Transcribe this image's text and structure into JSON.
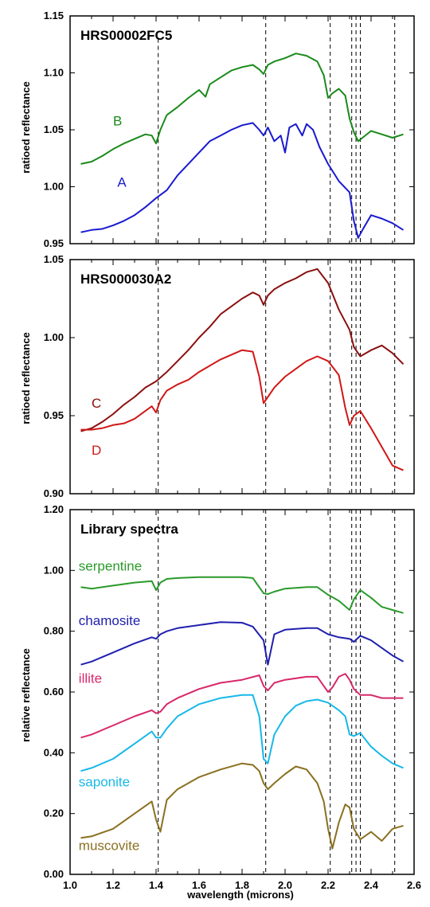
{
  "chart_data": [
    {
      "type": "line",
      "title": "HRS00002FC5",
      "ylabel": "ratioed reflectance",
      "xlim": [
        1.0,
        2.6
      ],
      "ylim": [
        0.95,
        1.15
      ],
      "yticks": [
        "0.95",
        "1.00",
        "1.05",
        "1.10",
        "1.15"
      ],
      "series": [
        {
          "name": "B",
          "color": "#1a8a1a",
          "x": [
            1.05,
            1.1,
            1.15,
            1.2,
            1.25,
            1.3,
            1.35,
            1.38,
            1.4,
            1.42,
            1.45,
            1.5,
            1.55,
            1.6,
            1.63,
            1.65,
            1.7,
            1.75,
            1.8,
            1.85,
            1.88,
            1.9,
            1.92,
            1.95,
            2.0,
            2.05,
            2.1,
            2.15,
            2.18,
            2.2,
            2.22,
            2.25,
            2.28,
            2.3,
            2.32,
            2.34,
            2.36,
            2.4,
            2.45,
            2.5,
            2.55
          ],
          "y": [
            1.02,
            1.022,
            1.027,
            1.033,
            1.038,
            1.042,
            1.046,
            1.045,
            1.038,
            1.05,
            1.063,
            1.07,
            1.078,
            1.085,
            1.079,
            1.09,
            1.096,
            1.102,
            1.105,
            1.107,
            1.103,
            1.099,
            1.107,
            1.11,
            1.113,
            1.117,
            1.115,
            1.11,
            1.098,
            1.078,
            1.082,
            1.086,
            1.08,
            1.06,
            1.048,
            1.04,
            1.043,
            1.049,
            1.046,
            1.043,
            1.046
          ]
        },
        {
          "name": "A",
          "color": "#1a1ad0",
          "x": [
            1.05,
            1.1,
            1.15,
            1.2,
            1.25,
            1.3,
            1.35,
            1.4,
            1.45,
            1.5,
            1.55,
            1.6,
            1.65,
            1.7,
            1.75,
            1.8,
            1.85,
            1.88,
            1.9,
            1.92,
            1.95,
            1.98,
            2.0,
            2.02,
            2.05,
            2.08,
            2.1,
            2.13,
            2.16,
            2.2,
            2.25,
            2.3,
            2.32,
            2.34,
            2.36,
            2.4,
            2.45,
            2.5,
            2.55
          ],
          "y": [
            0.96,
            0.962,
            0.963,
            0.966,
            0.97,
            0.975,
            0.982,
            0.99,
            0.997,
            1.01,
            1.02,
            1.03,
            1.04,
            1.045,
            1.05,
            1.054,
            1.056,
            1.05,
            1.045,
            1.052,
            1.04,
            1.045,
            1.03,
            1.052,
            1.055,
            1.045,
            1.055,
            1.05,
            1.035,
            1.02,
            1.005,
            0.995,
            0.97,
            0.955,
            0.962,
            0.975,
            0.972,
            0.968,
            0.962
          ]
        }
      ],
      "annotations": [
        {
          "text": "B",
          "x": 1.2,
          "y": 1.054
        },
        {
          "text": "A",
          "x": 1.22,
          "y": 1.0
        }
      ]
    },
    {
      "type": "line",
      "title": "HRS000030A2",
      "ylabel": "ratioed reflectance",
      "xlim": [
        1.0,
        2.6
      ],
      "ylim": [
        0.9,
        1.05
      ],
      "yticks": [
        "0.90",
        "0.95",
        "1.00",
        "1.05"
      ],
      "series": [
        {
          "name": "C",
          "color": "#8b1010",
          "x": [
            1.05,
            1.1,
            1.15,
            1.2,
            1.25,
            1.3,
            1.35,
            1.4,
            1.45,
            1.5,
            1.55,
            1.6,
            1.65,
            1.7,
            1.75,
            1.8,
            1.85,
            1.88,
            1.9,
            1.92,
            1.95,
            2.0,
            2.05,
            2.1,
            2.15,
            2.2,
            2.25,
            2.3,
            2.32,
            2.35,
            2.4,
            2.45,
            2.5,
            2.55
          ],
          "y": [
            0.94,
            0.942,
            0.946,
            0.951,
            0.957,
            0.962,
            0.968,
            0.972,
            0.978,
            0.985,
            0.992,
            1.0,
            1.007,
            1.015,
            1.02,
            1.025,
            1.029,
            1.027,
            1.021,
            1.027,
            1.031,
            1.035,
            1.038,
            1.042,
            1.044,
            1.035,
            1.018,
            1.005,
            0.994,
            0.988,
            0.992,
            0.995,
            0.99,
            0.983
          ]
        },
        {
          "name": "D",
          "color": "#d01818",
          "x": [
            1.05,
            1.1,
            1.15,
            1.2,
            1.25,
            1.3,
            1.35,
            1.38,
            1.4,
            1.42,
            1.45,
            1.5,
            1.55,
            1.6,
            1.65,
            1.7,
            1.75,
            1.8,
            1.85,
            1.88,
            1.9,
            1.92,
            1.95,
            2.0,
            2.05,
            2.1,
            2.15,
            2.2,
            2.25,
            2.28,
            2.3,
            2.32,
            2.35,
            2.4,
            2.45,
            2.5,
            2.55
          ],
          "y": [
            0.941,
            0.941,
            0.942,
            0.944,
            0.945,
            0.948,
            0.953,
            0.956,
            0.952,
            0.96,
            0.966,
            0.97,
            0.973,
            0.978,
            0.982,
            0.986,
            0.989,
            0.992,
            0.991,
            0.975,
            0.958,
            0.962,
            0.968,
            0.975,
            0.98,
            0.985,
            0.988,
            0.985,
            0.976,
            0.955,
            0.944,
            0.95,
            0.953,
            0.942,
            0.93,
            0.918,
            0.915
          ]
        }
      ],
      "annotations": [
        {
          "text": "C",
          "x": 1.1,
          "y": 0.955
        },
        {
          "text": "D",
          "x": 1.1,
          "y": 0.925
        }
      ]
    },
    {
      "type": "line",
      "title": "Library spectra",
      "ylabel": "relative reflectance",
      "xlabel": "wavelength (microns)",
      "xlim": [
        1.0,
        2.6
      ],
      "ylim": [
        0.0,
        1.2
      ],
      "xticks": [
        "1.0",
        "1.2",
        "1.4",
        "1.6",
        "1.8",
        "2.0",
        "2.2",
        "2.4",
        "2.6"
      ],
      "yticks": [
        "0.00",
        "0.20",
        "0.40",
        "0.60",
        "0.80",
        "1.00",
        "1.20"
      ],
      "series": [
        {
          "name": "serpentine",
          "color": "#2a9a2a",
          "x": [
            1.05,
            1.1,
            1.2,
            1.3,
            1.38,
            1.4,
            1.42,
            1.45,
            1.5,
            1.6,
            1.7,
            1.8,
            1.85,
            1.9,
            1.92,
            1.95,
            2.0,
            2.1,
            2.15,
            2.2,
            2.25,
            2.3,
            2.32,
            2.35,
            2.4,
            2.45,
            2.5,
            2.55
          ],
          "y": [
            0.945,
            0.94,
            0.95,
            0.96,
            0.965,
            0.935,
            0.96,
            0.972,
            0.975,
            0.978,
            0.978,
            0.978,
            0.975,
            0.925,
            0.922,
            0.93,
            0.94,
            0.945,
            0.945,
            0.92,
            0.9,
            0.87,
            0.905,
            0.935,
            0.91,
            0.88,
            0.87,
            0.86
          ]
        },
        {
          "name": "chamosite",
          "color": "#2020b0",
          "x": [
            1.05,
            1.1,
            1.2,
            1.3,
            1.38,
            1.4,
            1.42,
            1.45,
            1.5,
            1.6,
            1.7,
            1.8,
            1.85,
            1.9,
            1.92,
            1.95,
            2.0,
            2.1,
            2.15,
            2.2,
            2.25,
            2.3,
            2.32,
            2.35,
            2.4,
            2.45,
            2.5,
            2.55
          ],
          "y": [
            0.69,
            0.7,
            0.73,
            0.76,
            0.78,
            0.775,
            0.79,
            0.8,
            0.81,
            0.82,
            0.83,
            0.828,
            0.815,
            0.77,
            0.69,
            0.79,
            0.805,
            0.81,
            0.81,
            0.79,
            0.78,
            0.775,
            0.765,
            0.785,
            0.77,
            0.745,
            0.72,
            0.7
          ]
        },
        {
          "name": "illite",
          "color": "#d8286a",
          "x": [
            1.05,
            1.1,
            1.2,
            1.3,
            1.38,
            1.4,
            1.42,
            1.45,
            1.5,
            1.6,
            1.7,
            1.8,
            1.88,
            1.9,
            1.92,
            1.95,
            2.0,
            2.1,
            2.15,
            2.18,
            2.2,
            2.22,
            2.25,
            2.28,
            2.3,
            2.32,
            2.35,
            2.4,
            2.45,
            2.5,
            2.55
          ],
          "y": [
            0.45,
            0.46,
            0.49,
            0.52,
            0.54,
            0.53,
            0.535,
            0.56,
            0.58,
            0.61,
            0.63,
            0.64,
            0.655,
            0.62,
            0.605,
            0.63,
            0.64,
            0.65,
            0.65,
            0.62,
            0.6,
            0.615,
            0.65,
            0.66,
            0.64,
            0.61,
            0.59,
            0.59,
            0.58,
            0.58,
            0.58
          ]
        },
        {
          "name": "saponite",
          "color": "#18b8e8",
          "x": [
            1.05,
            1.1,
            1.2,
            1.3,
            1.38,
            1.4,
            1.42,
            1.45,
            1.5,
            1.6,
            1.7,
            1.8,
            1.85,
            1.88,
            1.9,
            1.92,
            1.95,
            2.0,
            2.05,
            2.1,
            2.15,
            2.2,
            2.25,
            2.28,
            2.3,
            2.32,
            2.35,
            2.4,
            2.45,
            2.5,
            2.55
          ],
          "y": [
            0.34,
            0.35,
            0.38,
            0.43,
            0.47,
            0.45,
            0.45,
            0.48,
            0.52,
            0.56,
            0.58,
            0.59,
            0.59,
            0.52,
            0.38,
            0.365,
            0.46,
            0.52,
            0.555,
            0.57,
            0.575,
            0.565,
            0.54,
            0.52,
            0.46,
            0.455,
            0.465,
            0.42,
            0.39,
            0.365,
            0.35
          ]
        },
        {
          "name": "muscovite",
          "color": "#8a7020",
          "x": [
            1.05,
            1.1,
            1.2,
            1.3,
            1.38,
            1.4,
            1.42,
            1.45,
            1.5,
            1.6,
            1.7,
            1.8,
            1.85,
            1.88,
            1.9,
            1.92,
            1.95,
            2.0,
            2.05,
            2.1,
            2.15,
            2.18,
            2.2,
            2.22,
            2.25,
            2.28,
            2.3,
            2.32,
            2.35,
            2.4,
            2.45,
            2.5,
            2.55
          ],
          "y": [
            0.12,
            0.125,
            0.15,
            0.2,
            0.24,
            0.18,
            0.14,
            0.245,
            0.28,
            0.32,
            0.345,
            0.365,
            0.36,
            0.34,
            0.3,
            0.28,
            0.3,
            0.33,
            0.355,
            0.345,
            0.3,
            0.24,
            0.15,
            0.085,
            0.17,
            0.23,
            0.22,
            0.15,
            0.115,
            0.14,
            0.11,
            0.15,
            0.16
          ]
        }
      ],
      "annotations": [
        {
          "text": "serpentine",
          "x": 1.04,
          "y": 1.0
        },
        {
          "text": "chamosite",
          "x": 1.04,
          "y": 0.82
        },
        {
          "text": "illite",
          "x": 1.04,
          "y": 0.63
        },
        {
          "text": "saponite",
          "x": 1.04,
          "y": 0.29
        },
        {
          "text": "muscovite",
          "x": 1.04,
          "y": 0.08
        }
      ]
    }
  ],
  "reference_lines_x": [
    1.41,
    1.91,
    2.21,
    2.31,
    2.33,
    2.35,
    2.51
  ]
}
